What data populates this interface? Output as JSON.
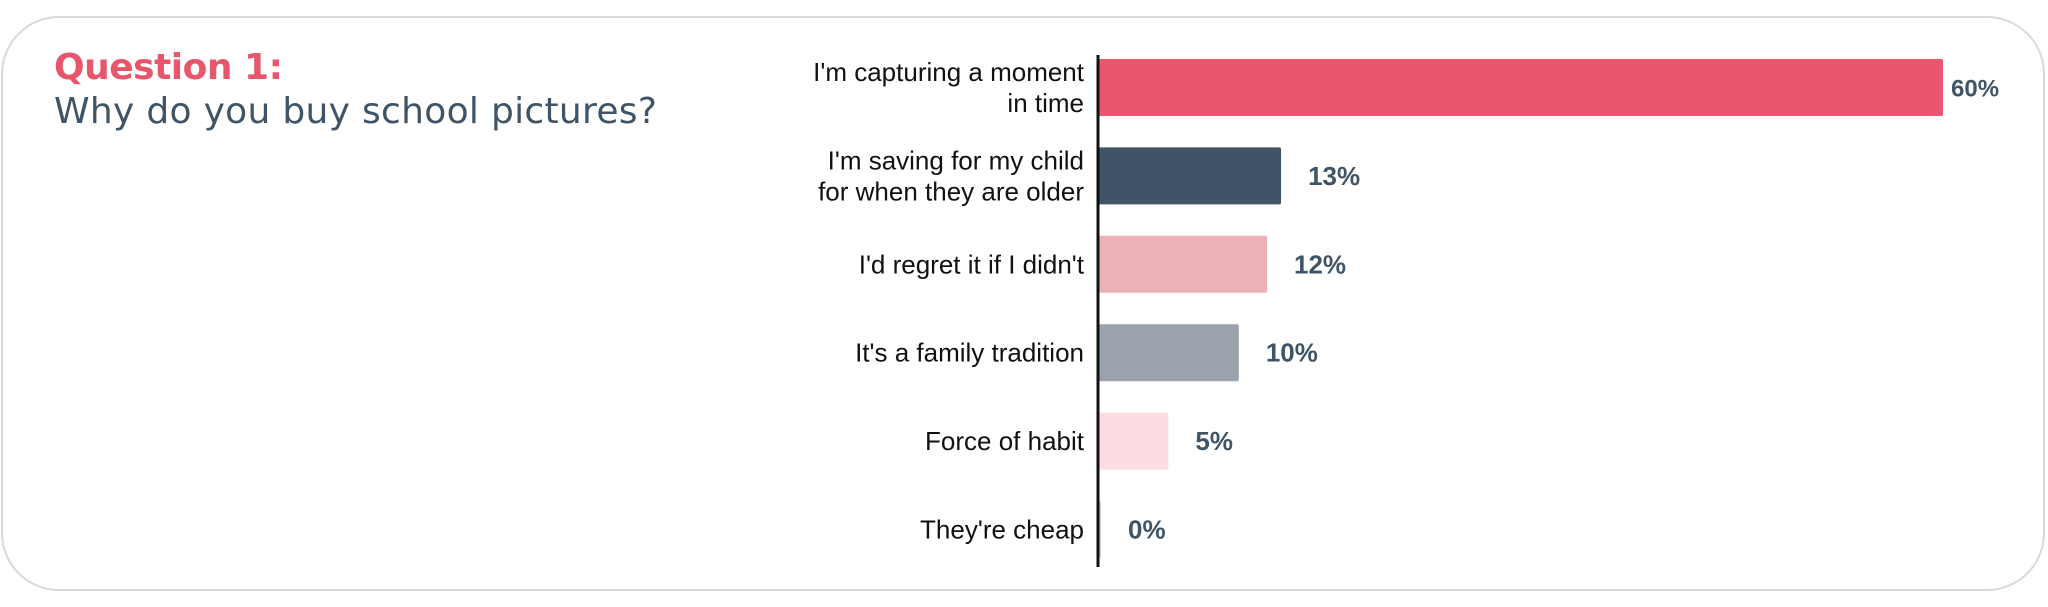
{
  "header": {
    "question_label": "Question 1:",
    "question_text": "Why do you buy school pictures?"
  },
  "colors": {
    "title_accent": "#e8566c",
    "title_text": "#3f5466",
    "value_label": "#3f5466",
    "axis": "#111111"
  },
  "chart_data": {
    "type": "bar",
    "orientation": "horizontal",
    "categories": [
      [
        "I'm capturing a moment",
        "in time"
      ],
      [
        "I'm saving for my child",
        "for when they are older"
      ],
      [
        "I'd regret it if I didn't"
      ],
      [
        "It's a family tradition"
      ],
      [
        "Force of habit"
      ],
      [
        "They're cheap"
      ]
    ],
    "values": [
      60,
      13,
      12,
      10,
      5,
      0
    ],
    "value_labels": [
      "60%",
      "13%",
      "12%",
      "10%",
      "5%",
      "0%"
    ],
    "bar_colors": [
      "#e9566d",
      "#3f5467",
      "#eeb0b7",
      "#9aa3ad",
      "#fbdde2",
      "#c9cfd4"
    ],
    "title": "",
    "xlabel": "",
    "ylabel": "",
    "xlim": [
      0,
      60
    ],
    "grid": false,
    "legend": "none"
  }
}
